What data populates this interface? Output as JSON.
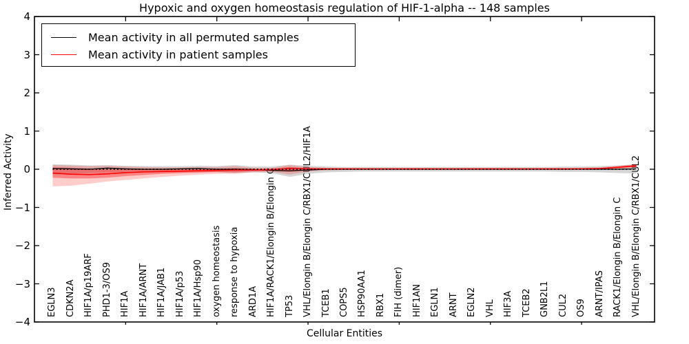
{
  "figure": {
    "title": "Hypoxic and oxygen homeostasis regulation of HIF-1-alpha -- 148 samples",
    "xlabel": "Cellular Entities",
    "ylabel": "Inferred Activity"
  },
  "colors": {
    "permuted_line": "#000000",
    "patient_line": "#ff0000",
    "permuted_band": "#b0b0b0",
    "patient_band": "#ff0000",
    "axes": "#000000",
    "background": "#ffffff"
  },
  "chart_data": {
    "type": "line",
    "title": "Hypoxic and oxygen homeostasis regulation of HIF-1-alpha -- 148 samples",
    "xlabel": "Cellular Entities",
    "ylabel": "Inferred Activity",
    "ylim": [
      -4,
      4
    ],
    "yticks": [
      -4,
      -3,
      -2,
      -1,
      0,
      1,
      2,
      3,
      4
    ],
    "xticks": [
      5,
      10,
      15,
      20,
      25,
      30
    ],
    "grid": false,
    "legend_position": "upper left",
    "reference_line": {
      "y": 0,
      "style": "dotted",
      "color": "#000000"
    },
    "categories": [
      "EGLN3",
      "CDKN2A",
      "HIF1A/p19ARF",
      "PHD1-3/OS9",
      "HIF1A",
      "HIF1A/ARNT",
      "HIF1A/JAB1",
      "HIF1A/p53",
      "HIF1A/Hsp90",
      "oxygen homeostasis",
      "response to hypoxia",
      "ARD1A",
      "HIF1A/RACK1/Elongin B/Elongin C",
      "TP53",
      "VHL/Elongin B/Elongin C/RBX1/CUL2/HIF1A",
      "TCEB1",
      "COPS5",
      "HSP90AA1",
      "RBX1",
      "FIH (dimer)",
      "HIF1AN",
      "EGLN1",
      "ARNT",
      "EGLN2",
      "VHL",
      "HIF3A",
      "TCEB2",
      "GNB2L1",
      "CUL2",
      "OS9",
      "ARNT/IPAS",
      "RACK1/Elongin B/Elongin C",
      "VHL/Elongin B/Elongin C/RBX1/CUL2"
    ],
    "series": [
      {
        "name": "Mean activity in all permuted samples",
        "color": "#000000",
        "values": [
          0.02,
          0.01,
          0,
          0.03,
          0.01,
          0,
          0,
          0.01,
          0.02,
          0,
          0,
          -0.01,
          -0.03,
          -0.04,
          -0.02,
          0,
          0,
          0,
          0,
          0,
          0,
          0,
          0,
          0,
          0,
          0,
          0,
          0,
          0,
          0,
          0,
          0,
          0.01
        ]
      },
      {
        "name": "Mean activity in patient samples",
        "color": "#ff0000",
        "values": [
          -0.1,
          -0.13,
          -0.14,
          -0.12,
          -0.09,
          -0.07,
          -0.06,
          -0.05,
          -0.04,
          -0.03,
          -0.02,
          -0.02,
          -0.01,
          0.02,
          0.01,
          0.01,
          0.01,
          0.01,
          0.01,
          0.01,
          0.01,
          0.01,
          0.01,
          0.01,
          0.01,
          0.01,
          0.01,
          0.01,
          0.01,
          0.01,
          0.02,
          0.05,
          0.09
        ]
      }
    ],
    "bands": [
      {
        "name": "permuted-samples-range",
        "color": "#999999",
        "opacity": 0.4,
        "upper": [
          0.13,
          0.12,
          0.1,
          0.11,
          0.09,
          0.08,
          0.08,
          0.08,
          0.09,
          0.08,
          0.11,
          0.07,
          0.07,
          0.12,
          0.09,
          0.07,
          0.06,
          0.06,
          0.06,
          0.06,
          0.06,
          0.06,
          0.06,
          0.06,
          0.06,
          0.06,
          0.06,
          0.06,
          0.07,
          0.07,
          0.08,
          0.1,
          0.12
        ],
        "lower": [
          -0.13,
          -0.12,
          -0.1,
          -0.08,
          -0.09,
          -0.08,
          -0.08,
          -0.08,
          -0.07,
          -0.08,
          -0.1,
          -0.08,
          -0.1,
          -0.2,
          -0.12,
          -0.08,
          -0.07,
          -0.06,
          -0.06,
          -0.06,
          -0.06,
          -0.06,
          -0.06,
          -0.06,
          -0.06,
          -0.06,
          -0.06,
          -0.06,
          -0.07,
          -0.07,
          -0.08,
          -0.1,
          -0.11
        ]
      },
      {
        "name": "patient-samples-range-outer",
        "color": "#ff0000",
        "opacity": 0.2,
        "upper": [
          0.11,
          0.1,
          0.08,
          0.09,
          0.07,
          0.06,
          0.05,
          0.05,
          0.06,
          0.06,
          0.08,
          0.04,
          0.04,
          0.11,
          0.06,
          0.04,
          0.03,
          0.03,
          0.03,
          0.03,
          0.03,
          0.03,
          0.03,
          0.03,
          0.03,
          0.03,
          0.03,
          0.03,
          0.03,
          0.04,
          0.05,
          0.09,
          0.14
        ],
        "lower": [
          -0.45,
          -0.43,
          -0.38,
          -0.32,
          -0.28,
          -0.24,
          -0.2,
          -0.17,
          -0.14,
          -0.12,
          -0.12,
          -0.08,
          -0.07,
          -0.14,
          -0.06,
          -0.03,
          -0.02,
          -0.01,
          -0.01,
          -0.01,
          -0.01,
          -0.01,
          -0.01,
          -0.01,
          -0.01,
          -0.01,
          -0.01,
          -0.01,
          -0.01,
          -0.01,
          0.0,
          0.01,
          0.04
        ]
      },
      {
        "name": "patient-samples-range-inner",
        "color": "#ff0000",
        "opacity": 0.35,
        "upper": [
          0.05,
          0.04,
          0.02,
          0.01,
          0.0,
          -0.01,
          -0.01,
          -0.01,
          0.0,
          0.01,
          0.03,
          0.01,
          0.01,
          0.06,
          0.03,
          0.02,
          0.02,
          0.02,
          0.02,
          0.02,
          0.02,
          0.02,
          0.02,
          0.02,
          0.02,
          0.02,
          0.02,
          0.02,
          0.02,
          0.02,
          0.03,
          0.07,
          0.12
        ],
        "lower": [
          -0.22,
          -0.24,
          -0.24,
          -0.22,
          -0.18,
          -0.15,
          -0.12,
          -0.1,
          -0.09,
          -0.07,
          -0.08,
          -0.05,
          -0.04,
          -0.07,
          -0.03,
          -0.01,
          0.0,
          0.0,
          0.0,
          0.0,
          0.0,
          0.0,
          0.0,
          0.0,
          0.0,
          0.0,
          0.0,
          0.0,
          0.0,
          0.01,
          0.01,
          0.03,
          0.06
        ]
      }
    ]
  }
}
